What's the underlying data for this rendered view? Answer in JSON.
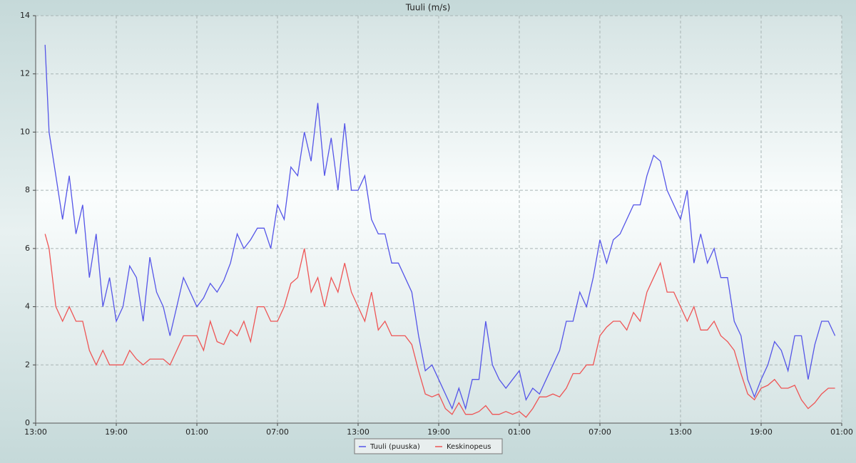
{
  "chart_data": {
    "type": "line",
    "title": "Tuuli (m/s)",
    "x": [
      0.7,
      1,
      1.5,
      2,
      2.5,
      3,
      3.5,
      4,
      4.5,
      5,
      5.5,
      6,
      6.5,
      7,
      7.5,
      8,
      8.5,
      9,
      9.5,
      10,
      10.5,
      11,
      11.5,
      12,
      12.5,
      13,
      13.5,
      14,
      14.5,
      15,
      15.5,
      16,
      16.5,
      17,
      17.5,
      18,
      18.5,
      19,
      19.5,
      20,
      20.5,
      21,
      21.5,
      22,
      22.5,
      23,
      23.5,
      24,
      24.5,
      25,
      25.5,
      26,
      26.5,
      27,
      27.5,
      28,
      28.5,
      29,
      29.5,
      30,
      30.5,
      31,
      31.5,
      32,
      32.5,
      33,
      33.5,
      34,
      34.5,
      35,
      35.5,
      36,
      36.5,
      37,
      37.5,
      38,
      38.5,
      39,
      39.5,
      40,
      40.5,
      41,
      41.5,
      42,
      42.5,
      43,
      43.5,
      44,
      44.5,
      45,
      45.5,
      46,
      46.5,
      47,
      47.5,
      48,
      48.5,
      49,
      49.5,
      50,
      50.5,
      51,
      51.5,
      52,
      52.5,
      53,
      53.5,
      54,
      54.5,
      55,
      55.5,
      56,
      56.5,
      57,
      57.5,
      58,
      58.5,
      59,
      59.5
    ],
    "series": [
      {
        "name": "Tuuli (puuska)",
        "color": "#5555e8",
        "values": [
          13,
          10,
          8.5,
          7,
          8.5,
          6.5,
          7.5,
          5,
          6.5,
          4,
          5,
          3.5,
          4,
          5.4,
          5,
          3.5,
          5.7,
          4.5,
          4,
          3,
          4,
          5,
          4.5,
          4,
          4.3,
          4.8,
          4.5,
          4.9,
          5.5,
          6.5,
          6,
          6.3,
          6.7,
          6.7,
          6,
          7.5,
          7,
          8.8,
          8.5,
          10,
          9,
          11,
          8.5,
          9.8,
          8,
          10.3,
          8,
          8,
          8.5,
          7,
          6.5,
          6.5,
          5.5,
          5.5,
          5,
          4.5,
          3,
          1.8,
          2,
          1.5,
          1,
          0.5,
          1.2,
          0.5,
          1.5,
          1.5,
          3.5,
          2,
          1.5,
          1.2,
          1.5,
          1.8,
          0.8,
          1.2,
          1,
          1.5,
          2,
          2.5,
          3.5,
          3.5,
          4.5,
          4,
          5,
          6.3,
          5.5,
          6.3,
          6.5,
          7,
          7.5,
          7.5,
          8.5,
          9.2,
          9,
          8,
          7.5,
          7,
          8,
          5.5,
          6.5,
          5.5,
          6,
          5,
          5,
          3.5,
          3,
          1.5,
          0.9,
          1.5,
          2,
          2.8,
          2.5,
          1.8,
          3,
          3,
          1.5,
          2.7,
          3.5,
          3.5,
          3
        ]
      },
      {
        "name": "Keskinopeus",
        "color": "#ee5555",
        "values": [
          6.5,
          6,
          4,
          3.5,
          4,
          3.5,
          3.5,
          2.5,
          2,
          2.5,
          2,
          2,
          2,
          2.5,
          2.2,
          2,
          2.2,
          2.2,
          2.2,
          2,
          2.5,
          3,
          3,
          3,
          2.5,
          3.5,
          2.8,
          2.7,
          3.2,
          3,
          3.5,
          2.8,
          4,
          4,
          3.5,
          3.5,
          4,
          4.8,
          5,
          6,
          4.5,
          5,
          4,
          5,
          4.5,
          5.5,
          4.5,
          4,
          3.5,
          4.5,
          3.2,
          3.5,
          3,
          3,
          3,
          2.7,
          1.8,
          1,
          0.9,
          1,
          0.5,
          0.3,
          0.7,
          0.3,
          0.3,
          0.4,
          0.6,
          0.3,
          0.3,
          0.4,
          0.3,
          0.4,
          0.2,
          0.5,
          0.9,
          0.9,
          1,
          0.9,
          1.2,
          1.7,
          1.7,
          2,
          2,
          3,
          3.3,
          3.5,
          3.5,
          3.2,
          3.8,
          3.5,
          4.5,
          5,
          5.5,
          4.5,
          4.5,
          4,
          3.5,
          4,
          3.2,
          3.2,
          3.5,
          3,
          2.8,
          2.5,
          1.7,
          1,
          0.8,
          1.2,
          1.3,
          1.5,
          1.2,
          1.2,
          1.3,
          0.8,
          0.5,
          0.7,
          1,
          1.2,
          1.2
        ]
      }
    ],
    "xlim": [
      0,
      60
    ],
    "xticks": [
      {
        "value": 0,
        "label": "13:00"
      },
      {
        "value": 6,
        "label": "19:00"
      },
      {
        "value": 12,
        "label": "01:00"
      },
      {
        "value": 18,
        "label": "07:00"
      },
      {
        "value": 24,
        "label": "13:00"
      },
      {
        "value": 30,
        "label": "19:00"
      },
      {
        "value": 36,
        "label": "01:00"
      },
      {
        "value": 42,
        "label": "07:00"
      },
      {
        "value": 48,
        "label": "13:00"
      },
      {
        "value": 54,
        "label": "19:00"
      },
      {
        "value": 60,
        "label": "01:00"
      }
    ],
    "ylim": [
      0,
      14
    ],
    "yticks": [
      0,
      2,
      4,
      6,
      8,
      10,
      12,
      14
    ],
    "grid": true,
    "legend": "bottom"
  }
}
